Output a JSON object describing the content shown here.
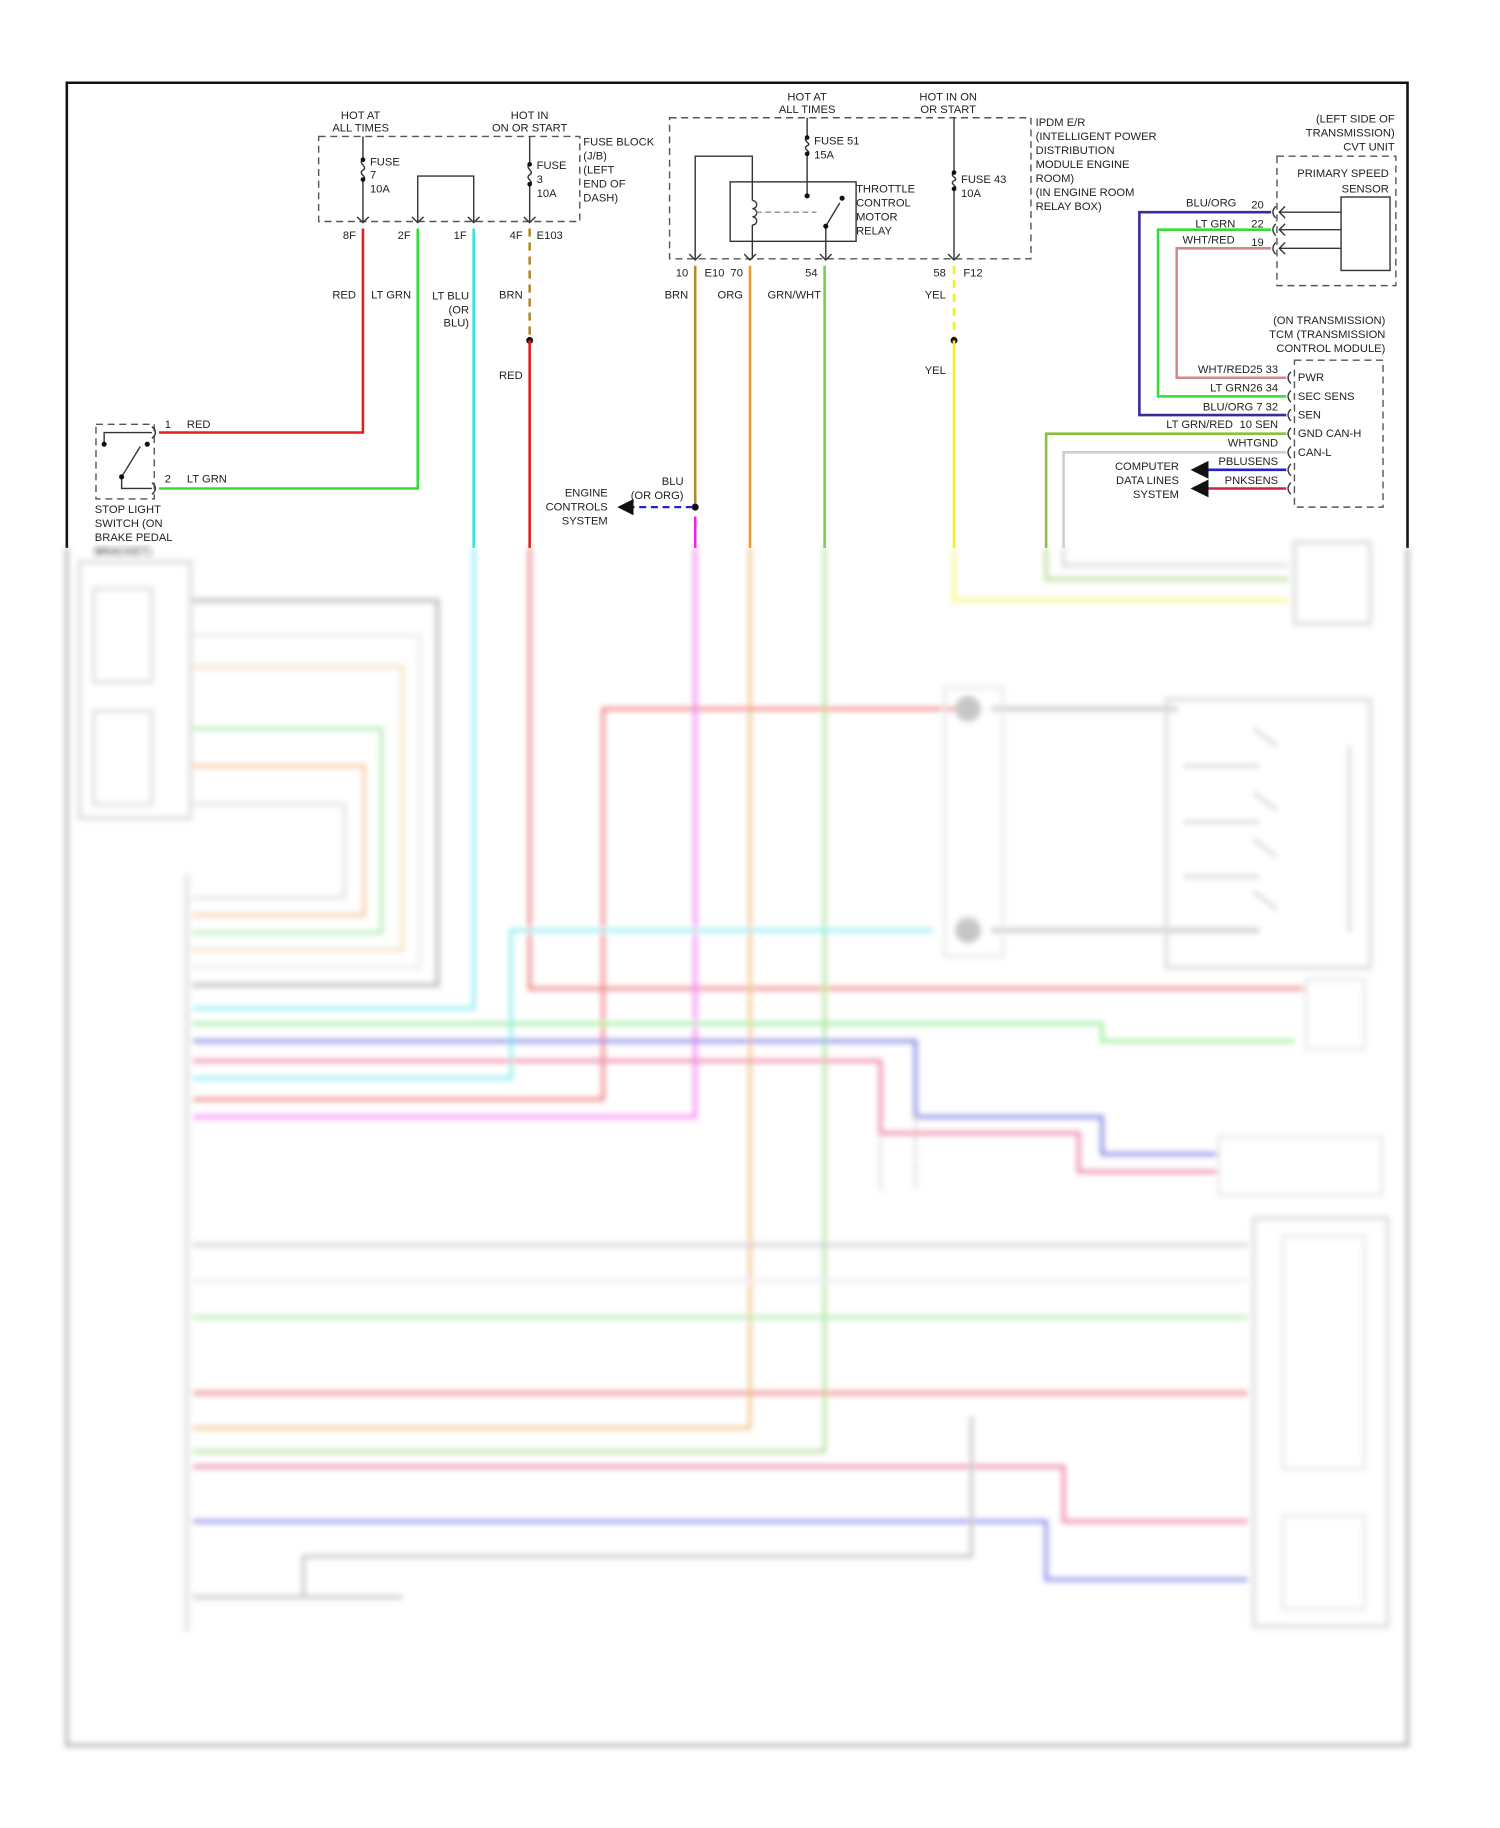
{
  "fuse_block": {
    "hot_at_all_times": [
      "HOT AT",
      "ALL TIMES"
    ],
    "hot_in_on_or_start": [
      "HOT IN",
      "ON OR START"
    ],
    "fuse7": [
      "FUSE",
      "7",
      "10A"
    ],
    "fuse3": [
      "FUSE",
      "3",
      "10A"
    ],
    "title": [
      "FUSE BLOCK",
      "(J/B)",
      "(LEFT",
      "END OF",
      "DASH)"
    ],
    "pins": [
      "8F",
      "2F",
      "1F",
      "4F",
      "E103"
    ],
    "wires": {
      "red": "RED",
      "lt_grn": "LT GRN",
      "lt_blu": [
        "LT BLU",
        "(OR",
        "BLU)"
      ],
      "brn": "BRN",
      "red2": "RED"
    }
  },
  "stop_light_switch": {
    "pin1": "1",
    "pin1_wire": "RED",
    "pin2": "2",
    "pin2_wire": "LT GRN",
    "title": [
      "STOP LIGHT",
      "SWITCH (ON",
      "BRAKE PEDAL",
      "BRACKET)"
    ]
  },
  "ipdm": {
    "hot_at_all_times": [
      "HOT AT",
      "ALL TIMES"
    ],
    "hot_in_on_or_start": [
      "HOT IN ON",
      "OR START"
    ],
    "fuse51": [
      "FUSE 51",
      "15A"
    ],
    "fuse43": [
      "FUSE 43",
      "10A"
    ],
    "relay": [
      "THROTTLE",
      "CONTROL",
      "MOTOR",
      "RELAY"
    ],
    "title": [
      "IPDM E/R",
      "(INTELLIGENT POWER",
      "DISTRIBUTION",
      "MODULE ENGINE",
      "ROOM)",
      "(IN ENGINE ROOM",
      "RELAY BOX)"
    ],
    "pins": [
      "10",
      "E10",
      "70",
      "54",
      "58",
      "F12"
    ],
    "wires": {
      "brn": "BRN",
      "org": "ORG",
      "grn_wht": "GRN/WHT",
      "yel": "YEL",
      "yel2": "YEL"
    }
  },
  "engine_controls": {
    "wire": [
      "BLU",
      "(OR ORG)"
    ],
    "title": [
      "ENGINE",
      "CONTROLS",
      "SYSTEM"
    ]
  },
  "cvt_unit": {
    "title": [
      "(LEFT SIDE OF",
      "TRANSMISSION)",
      "CVT UNIT"
    ],
    "sensor": [
      "PRIMARY SPEED",
      "SENSOR"
    ],
    "rows": [
      {
        "wire": "BLU/ORG",
        "pin": "20"
      },
      {
        "wire": "LT GRN",
        "pin": "22"
      },
      {
        "wire": "WHT/RED",
        "pin": "19"
      }
    ]
  },
  "tcm": {
    "title": [
      "(ON TRANSMISSION)",
      "TCM (TRANSMISSION",
      "CONTROL MODULE)"
    ],
    "row_labels": [
      "WHT/RED25 33",
      "LT GRN26 34",
      "BLU/ORG 7 32",
      "LT GRN/RED",
      "10 SEN",
      "WHTGND",
      "PBLUSENS",
      "PNKSENS"
    ],
    "pin_names": [
      "PWR",
      "SEC SENS",
      "SEN",
      "GND CAN-H",
      "CAN-L"
    ]
  },
  "computer_data_lines": [
    "COMPUTER",
    "DATA LINES",
    "SYSTEM"
  ],
  "colors": {
    "red": "#e02020",
    "lt_grn": "#33dd33",
    "lt_blu": "#33e0e8",
    "brn": "#b08a28",
    "org": "#e89a30",
    "grn_wht": "#77cc55",
    "yel": "#f0f020",
    "blu_org": "#3a2a9a",
    "wht_red": "#d08a8a",
    "magenta": "#ee22ee",
    "blu": "#2222cc",
    "pnk": "#d0204a"
  }
}
